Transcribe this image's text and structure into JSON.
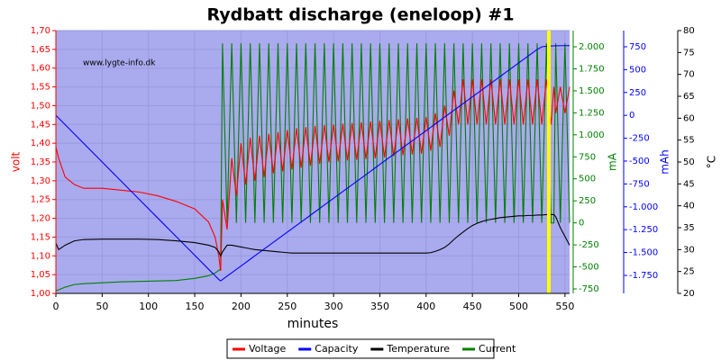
{
  "chart_data": {
    "type": "line",
    "title": "Rydbatt discharge (eneloop) #1",
    "annotation": "www.lygte-info.dk",
    "xlabel": "minutes",
    "ylabel": "volt",
    "y2label": "mA",
    "y3label": "mAh",
    "y4label": "°C",
    "grid": true,
    "legend": "bottom",
    "xlim": [
      0,
      555
    ],
    "xticks": [
      0,
      50,
      100,
      150,
      200,
      250,
      300,
      350,
      400,
      450,
      500,
      550
    ],
    "ylim": [
      1.0,
      1.7
    ],
    "yticks": [
      {
        "value": 1.0,
        "label": "1,00"
      },
      {
        "value": 1.05,
        "label": "1,05"
      },
      {
        "value": 1.1,
        "label": "1,10"
      },
      {
        "value": 1.15,
        "label": "1,15"
      },
      {
        "value": 1.2,
        "label": "1,20"
      },
      {
        "value": 1.25,
        "label": "1,25"
      },
      {
        "value": 1.3,
        "label": "1,30"
      },
      {
        "value": 1.35,
        "label": "1,35"
      },
      {
        "value": 1.4,
        "label": "1,40"
      },
      {
        "value": 1.45,
        "label": "1,45"
      },
      {
        "value": 1.5,
        "label": "1,50"
      },
      {
        "value": 1.55,
        "label": "1,55"
      },
      {
        "value": 1.6,
        "label": "1,60"
      },
      {
        "value": 1.65,
        "label": "1,65"
      },
      {
        "value": 1.7,
        "label": "1,70"
      }
    ],
    "y2lim": [
      -801,
      2184
    ],
    "y2ticks": [
      -750,
      -500,
      -250,
      0,
      250,
      500,
      750,
      {
        "value": 1000,
        "label": "1.000"
      },
      {
        "value": 1250,
        "label": "1.250"
      },
      {
        "value": 1500,
        "label": "1.500"
      },
      {
        "value": 1750,
        "label": "1.750"
      },
      {
        "value": 2000,
        "label": "2.000"
      }
    ],
    "y3lim": [
      -1947,
      927
    ],
    "y3ticks": [
      {
        "value": -1750,
        "label": "-1.750"
      },
      {
        "value": -1500,
        "label": "-1.500"
      },
      {
        "value": -1250,
        "label": "-1.250"
      },
      {
        "value": -1000,
        "label": "-1.000"
      },
      -750,
      -500,
      -250,
      0,
      250,
      500,
      750
    ],
    "y4lim": [
      20,
      80
    ],
    "y4ticks": [
      20,
      25,
      30,
      35,
      40,
      45,
      50,
      55,
      60,
      65,
      70,
      75,
      80
    ],
    "x": [
      0,
      3,
      10,
      20,
      30,
      50,
      70,
      90,
      110,
      130,
      150,
      165,
      172,
      176,
      178,
      180,
      185,
      190,
      195,
      200,
      205,
      210,
      215,
      220,
      225,
      230,
      235,
      240,
      245,
      250,
      255,
      260,
      265,
      270,
      275,
      280,
      285,
      290,
      295,
      300,
      305,
      310,
      315,
      320,
      325,
      330,
      335,
      340,
      345,
      350,
      355,
      360,
      365,
      370,
      375,
      380,
      385,
      390,
      395,
      400,
      405,
      410,
      415,
      420,
      425,
      430,
      435,
      440,
      445,
      450,
      455,
      460,
      465,
      470,
      475,
      480,
      485,
      490,
      495,
      500,
      505,
      510,
      515,
      520,
      525,
      530,
      535,
      538,
      540,
      545,
      550,
      555
    ],
    "series": [
      {
        "name": "Voltage",
        "color": "#ff0000",
        "axis": "y",
        "values": [
          1.39,
          1.36,
          1.31,
          1.29,
          1.28,
          1.28,
          1.275,
          1.27,
          1.26,
          1.245,
          1.225,
          1.19,
          1.15,
          1.1,
          1.06,
          1.25,
          1.17,
          1.36,
          1.26,
          1.4,
          1.29,
          1.415,
          1.3,
          1.42,
          1.31,
          1.425,
          1.32,
          1.43,
          1.325,
          1.435,
          1.33,
          1.44,
          1.335,
          1.443,
          1.34,
          1.446,
          1.345,
          1.448,
          1.35,
          1.45,
          1.352,
          1.452,
          1.354,
          1.454,
          1.356,
          1.456,
          1.358,
          1.458,
          1.36,
          1.46,
          1.362,
          1.462,
          1.365,
          1.464,
          1.368,
          1.466,
          1.37,
          1.468,
          1.372,
          1.47,
          1.38,
          1.48,
          1.39,
          1.5,
          1.42,
          1.54,
          1.45,
          1.57,
          1.45,
          1.57,
          1.45,
          1.57,
          1.45,
          1.57,
          1.45,
          1.57,
          1.45,
          1.57,
          1.45,
          1.57,
          1.45,
          1.57,
          1.45,
          1.57,
          1.45,
          1.57,
          1.45,
          1.55,
          1.48,
          1.55,
          1.48,
          1.55
        ]
      },
      {
        "name": "Capacity",
        "color": "#0000ff",
        "axis": "y3",
        "values": [
          0,
          -30,
          -102,
          -204,
          -306,
          -510,
          -714,
          -918,
          -1122,
          -1326,
          -1530,
          -1683,
          -1754,
          -1795,
          -1810,
          -1795,
          -1758,
          -1721,
          -1684,
          -1647,
          -1610,
          -1573,
          -1536,
          -1499,
          -1462,
          -1425,
          -1388,
          -1351,
          -1314,
          -1277,
          -1240,
          -1203,
          -1166,
          -1129,
          -1092,
          -1055,
          -1018,
          -981,
          -944,
          -907,
          -870,
          -833,
          -796,
          -759,
          -722,
          -685,
          -648,
          -611,
          -574,
          -537,
          -500,
          -463,
          -426,
          -389,
          -352,
          -315,
          -278,
          -241,
          -204,
          -167,
          -130,
          -93,
          -56,
          -19,
          18,
          55,
          92,
          129,
          166,
          203,
          240,
          277,
          314,
          351,
          388,
          425,
          462,
          499,
          536,
          573,
          610,
          647,
          684,
          721,
          750,
          755,
          758,
          760,
          760,
          762,
          762,
          763
        ]
      },
      {
        "name": "Temperature",
        "color": "#000000",
        "axis": "y4",
        "values": [
          31.5,
          30,
          31,
          32,
          32.3,
          32.4,
          32.4,
          32.4,
          32.3,
          32,
          31.6,
          31,
          30.5,
          29.5,
          28.5,
          29.5,
          31,
          31,
          30.8,
          30.6,
          30.4,
          30.2,
          30,
          29.9,
          29.8,
          29.7,
          29.6,
          29.5,
          29.4,
          29.3,
          29.2,
          29.2,
          29.2,
          29.2,
          29.2,
          29.2,
          29.2,
          29.2,
          29.2,
          29.2,
          29.2,
          29.2,
          29.2,
          29.2,
          29.2,
          29.2,
          29.2,
          29.2,
          29.2,
          29.2,
          29.2,
          29.2,
          29.2,
          29.2,
          29.2,
          29.2,
          29.2,
          29.2,
          29.2,
          29.2,
          29.3,
          29.6,
          30,
          30.5,
          31.3,
          32.3,
          33.2,
          34,
          34.8,
          35.5,
          36,
          36.4,
          36.7,
          36.9,
          37.1,
          37.3,
          37.4,
          37.5,
          37.6,
          37.7,
          37.7,
          37.8,
          37.8,
          37.9,
          37.9,
          38,
          38,
          38,
          37.5,
          35,
          33,
          31
        ]
      },
      {
        "name": "Current",
        "color": "#008000",
        "axis": "y2",
        "values": [
          -771,
          -760,
          -730,
          -700,
          -690,
          -680,
          -670,
          -665,
          -660,
          -655,
          -630,
          -600,
          -570,
          -540,
          -520,
          2040,
          0,
          2040,
          0,
          2040,
          0,
          2040,
          0,
          2040,
          0,
          2040,
          0,
          2040,
          0,
          2040,
          0,
          2040,
          0,
          2040,
          0,
          2040,
          0,
          2040,
          0,
          2040,
          0,
          2040,
          0,
          2040,
          0,
          2040,
          0,
          2040,
          0,
          2040,
          0,
          2040,
          0,
          2040,
          0,
          2040,
          0,
          2040,
          0,
          2040,
          0,
          2040,
          0,
          2040,
          0,
          2040,
          0,
          2040,
          0,
          2040,
          0,
          2040,
          0,
          2040,
          0,
          2040,
          0,
          2040,
          0,
          2040,
          0,
          2040,
          0,
          2040,
          0,
          2040,
          0,
          0,
          2040,
          0,
          2040,
          0
        ]
      }
    ]
  }
}
